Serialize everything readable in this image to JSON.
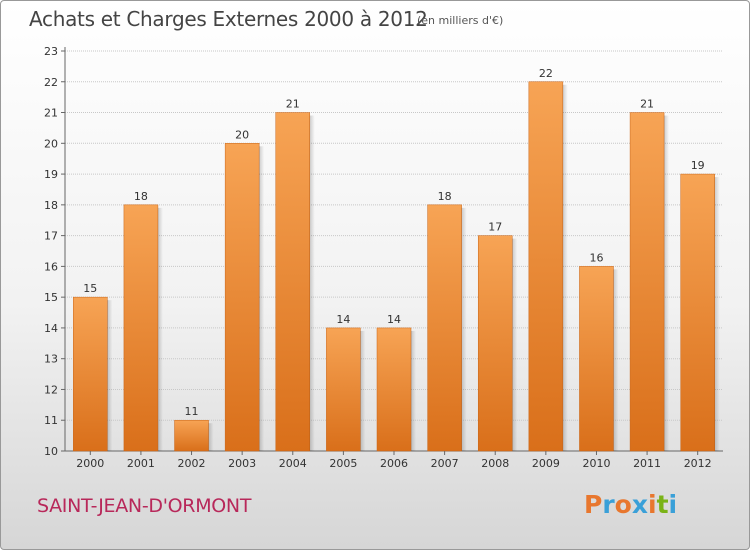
{
  "header": {
    "title": "Achats et Charges Externes 2000 à 2012",
    "subtitle": "(en milliers d'€)"
  },
  "footer": {
    "commune": "SAINT-JEAN-D'ORMONT",
    "logo": "Proxiti"
  },
  "colors": {
    "bar_top": "#f7a455",
    "bar_bottom": "#d96f1a",
    "commune_text": "#b8285a",
    "logo_letters": [
      "#e8772e",
      "#3aa0d8",
      "#e8772e",
      "#3aa0d8",
      "#e8772e",
      "#7ab317",
      "#3aa0d8"
    ]
  },
  "chart_data": {
    "type": "bar",
    "title": "Achats et Charges Externes 2000 à 2012",
    "subtitle": "(en milliers d'€)",
    "categories": [
      "2000",
      "2001",
      "2002",
      "2003",
      "2004",
      "2005",
      "2006",
      "2007",
      "2008",
      "2009",
      "2010",
      "2011",
      "2012"
    ],
    "values": [
      15,
      18,
      11,
      20,
      21,
      14,
      14,
      18,
      17,
      22,
      16,
      21,
      19
    ],
    "ylim": [
      10,
      23
    ],
    "yticks": [
      10,
      11,
      12,
      13,
      14,
      15,
      16,
      17,
      18,
      19,
      20,
      21,
      22,
      23
    ],
    "grid": true,
    "xlabel": "",
    "ylabel": ""
  }
}
